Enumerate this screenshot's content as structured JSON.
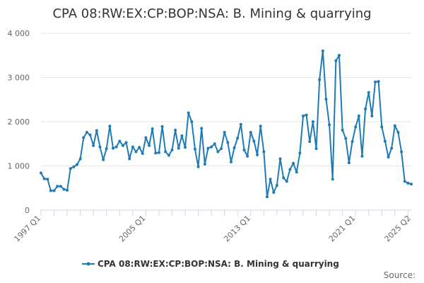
{
  "chart_data": {
    "type": "line",
    "title": "CPA 08:RW:EX:CP:BOP:NSA: B. Mining & quarrying",
    "xlabel": "",
    "ylabel": "",
    "ylim": [
      0,
      4000
    ],
    "y_ticks": [
      {
        "value": 0,
        "label": "0"
      },
      {
        "value": 1000,
        "label": "1 000"
      },
      {
        "value": 2000,
        "label": "2 000"
      },
      {
        "value": 3000,
        "label": "3 000"
      },
      {
        "value": 4000,
        "label": "4 000"
      }
    ],
    "x_ticks": [
      "1997 Q1",
      "2005 Q1",
      "2013 Q1",
      "2021 Q1",
      "2025 Q2"
    ],
    "grid": true,
    "legend_position": "bottom-center",
    "source_label": "Source:",
    "series_color": "#1f7bb6",
    "x": [
      "1997 Q1",
      "1997 Q2",
      "1997 Q3",
      "1997 Q4",
      "1998 Q1",
      "1998 Q2",
      "1998 Q3",
      "1998 Q4",
      "1999 Q1",
      "1999 Q2",
      "1999 Q3",
      "1999 Q4",
      "2000 Q1",
      "2000 Q2",
      "2000 Q3",
      "2000 Q4",
      "2001 Q1",
      "2001 Q2",
      "2001 Q3",
      "2001 Q4",
      "2002 Q1",
      "2002 Q2",
      "2002 Q3",
      "2002 Q4",
      "2003 Q1",
      "2003 Q2",
      "2003 Q3",
      "2003 Q4",
      "2004 Q1",
      "2004 Q2",
      "2004 Q3",
      "2004 Q4",
      "2005 Q1",
      "2005 Q2",
      "2005 Q3",
      "2005 Q4",
      "2006 Q1",
      "2006 Q2",
      "2006 Q3",
      "2006 Q4",
      "2007 Q1",
      "2007 Q2",
      "2007 Q3",
      "2007 Q4",
      "2008 Q1",
      "2008 Q2",
      "2008 Q3",
      "2008 Q4",
      "2009 Q1",
      "2009 Q2",
      "2009 Q3",
      "2009 Q4",
      "2010 Q1",
      "2010 Q2",
      "2010 Q3",
      "2010 Q4",
      "2011 Q1",
      "2011 Q2",
      "2011 Q3",
      "2011 Q4",
      "2012 Q1",
      "2012 Q2",
      "2012 Q3",
      "2012 Q4",
      "2013 Q1",
      "2013 Q2",
      "2013 Q3",
      "2013 Q4",
      "2014 Q1",
      "2014 Q2",
      "2014 Q3",
      "2014 Q4",
      "2015 Q1",
      "2015 Q2",
      "2015 Q3",
      "2015 Q4",
      "2016 Q1",
      "2016 Q2",
      "2016 Q3",
      "2016 Q4",
      "2017 Q1",
      "2017 Q2",
      "2017 Q3",
      "2017 Q4",
      "2018 Q1",
      "2018 Q2",
      "2018 Q3",
      "2018 Q4",
      "2019 Q1",
      "2019 Q2",
      "2019 Q3",
      "2019 Q4",
      "2020 Q1",
      "2020 Q2",
      "2020 Q3",
      "2020 Q4",
      "2021 Q1",
      "2021 Q2",
      "2021 Q3",
      "2021 Q4",
      "2022 Q1",
      "2022 Q2",
      "2022 Q3",
      "2022 Q4",
      "2023 Q1",
      "2023 Q2",
      "2023 Q3",
      "2023 Q4",
      "2024 Q1",
      "2024 Q2",
      "2024 Q3",
      "2024 Q4",
      "2025 Q1",
      "2025 Q2"
    ],
    "series": [
      {
        "name": "CPA 08:RW:EX:CP:BOP:NSA: B. Mining & quarrying",
        "values": [
          840,
          710,
          700,
          440,
          440,
          540,
          540,
          470,
          450,
          940,
          980,
          1030,
          1160,
          1640,
          1760,
          1700,
          1460,
          1800,
          1430,
          1140,
          1390,
          1900,
          1400,
          1430,
          1560,
          1460,
          1530,
          1160,
          1430,
          1320,
          1420,
          1280,
          1640,
          1460,
          1840,
          1290,
          1300,
          1890,
          1320,
          1240,
          1360,
          1810,
          1400,
          1680,
          1420,
          2200,
          2000,
          1380,
          980,
          1850,
          1040,
          1400,
          1430,
          1500,
          1320,
          1390,
          1760,
          1530,
          1090,
          1410,
          1630,
          1940,
          1360,
          1220,
          1760,
          1560,
          1250,
          1900,
          1320,
          300,
          700,
          400,
          560,
          1160,
          730,
          650,
          920,
          1060,
          860,
          1290,
          2130,
          2150,
          1550,
          2000,
          1390,
          2950,
          3600,
          2510,
          1930,
          700,
          3380,
          3500,
          1810,
          1620,
          1070,
          1550,
          1880,
          2130,
          1220,
          2290,
          2660,
          2130,
          2900,
          2910,
          1880,
          1560,
          1200,
          1400,
          1910,
          1760,
          1320,
          650,
          610,
          590
        ]
      }
    ]
  }
}
